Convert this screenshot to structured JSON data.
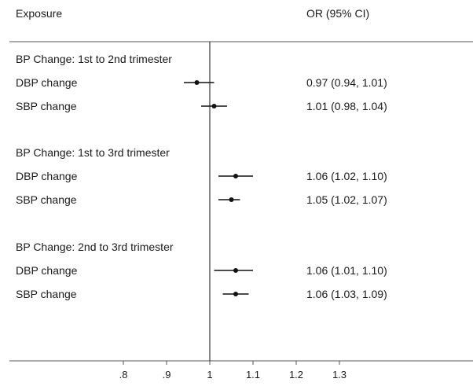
{
  "chart_data": {
    "type": "forest",
    "column_headers": {
      "label": "Exposure",
      "estimate": "OR (95% CI)"
    },
    "reference_line": 1,
    "xlim": [
      0.7,
      1.34
    ],
    "xticks": [
      {
        "value": 0.8,
        "label": ".8"
      },
      {
        "value": 0.9,
        "label": ".9"
      },
      {
        "value": 1.0,
        "label": "1"
      },
      {
        "value": 1.1,
        "label": "1.1"
      },
      {
        "value": 1.2,
        "label": "1.2"
      },
      {
        "value": 1.3,
        "label": "1.3"
      }
    ],
    "groups": [
      {
        "title": "BP Change: 1st to 2nd trimester",
        "rows": [
          {
            "label": "DBP change",
            "or": 0.97,
            "lo": 0.94,
            "hi": 1.01,
            "text": "0.97 (0.94, 1.01)"
          },
          {
            "label": "SBP change",
            "or": 1.01,
            "lo": 0.98,
            "hi": 1.04,
            "text": "1.01 (0.98, 1.04)"
          }
        ]
      },
      {
        "title": "BP Change: 1st to 3rd trimester",
        "rows": [
          {
            "label": "DBP change",
            "or": 1.06,
            "lo": 1.02,
            "hi": 1.1,
            "text": "1.06 (1.02, 1.10)"
          },
          {
            "label": "SBP change",
            "or": 1.05,
            "lo": 1.02,
            "hi": 1.07,
            "text": "1.05 (1.02, 1.07)"
          }
        ]
      },
      {
        "title": "BP Change: 2nd to 3rd trimester",
        "rows": [
          {
            "label": "DBP change",
            "or": 1.06,
            "lo": 1.01,
            "hi": 1.1,
            "text": "1.06 (1.01, 1.10)"
          },
          {
            "label": "SBP change",
            "or": 1.06,
            "lo": 1.03,
            "hi": 1.09,
            "text": "1.06 (1.03, 1.09)"
          }
        ]
      }
    ],
    "colors": {
      "marks": "#111111",
      "text": "#1a1a1a",
      "rule": "#555555"
    }
  }
}
